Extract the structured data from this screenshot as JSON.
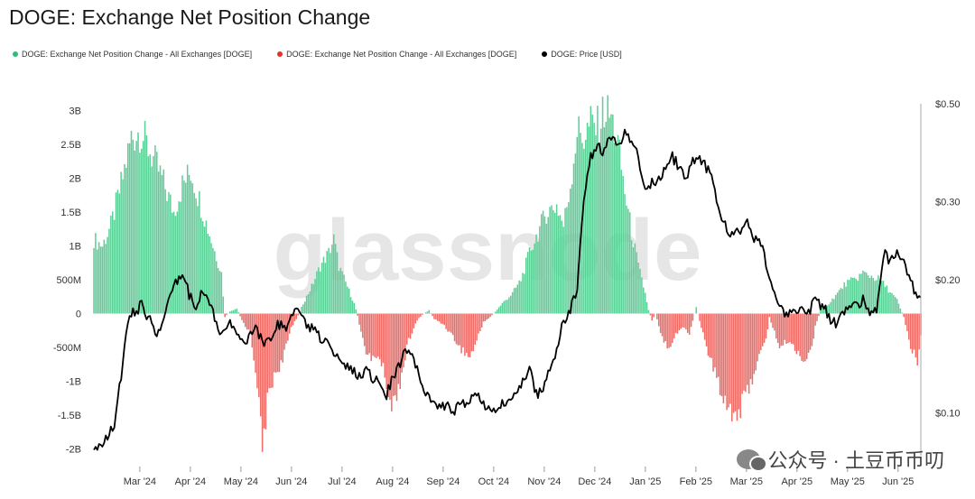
{
  "chart_data": {
    "type": "bar",
    "title": "DOGE: Exchange Net Position Change",
    "legend": [
      {
        "label": "DOGE: Exchange Net Position Change - All Exchanges [DOGE]",
        "color": "#2dbd7a"
      },
      {
        "label": "DOGE: Exchange Net Position Change - All Exchanges [DOGE]",
        "color": "#e8302a"
      },
      {
        "label": "DOGE: Price [USD]",
        "color": "#000000"
      }
    ],
    "x_ticks": [
      "Mar '24",
      "Apr '24",
      "May '24",
      "Jun '24",
      "Jul '24",
      "Aug '24",
      "Sep '24",
      "Oct '24",
      "Nov '24",
      "Dec '24",
      "Jan '25",
      "Feb '25",
      "Mar '25",
      "Apr '25",
      "May '25",
      "Jun '25"
    ],
    "y_left_ticks": [
      "3B",
      "2.5B",
      "2B",
      "1.5B",
      "1B",
      "500M",
      "0",
      "-500M",
      "-1B",
      "-1.5B",
      "-2B"
    ],
    "y_left_values": [
      3000,
      2500,
      2000,
      1500,
      1000,
      500,
      0,
      -500,
      -1000,
      -1500,
      -2000
    ],
    "ylim_left_millions": [
      -2100,
      3100
    ],
    "y_right_ticks": [
      "$0.50",
      "$0.30",
      "$0.20",
      "$0.10"
    ],
    "y_right_values": [
      0.5,
      0.3,
      0.2,
      0.1
    ],
    "ylim_right_usd_log": [
      0.08,
      0.5
    ],
    "x_range_days": [
      0,
      486
    ],
    "net_position_keypoints_millions": [
      [
        0,
        1100
      ],
      [
        5,
        1000
      ],
      [
        10,
        1300
      ],
      [
        16,
        1900
      ],
      [
        22,
        2600
      ],
      [
        27,
        2700
      ],
      [
        33,
        2400
      ],
      [
        40,
        2000
      ],
      [
        47,
        1500
      ],
      [
        52,
        1900
      ],
      [
        57,
        2100
      ],
      [
        63,
        1600
      ],
      [
        70,
        1000
      ],
      [
        75,
        600
      ],
      [
        77,
        -50
      ],
      [
        80,
        30
      ],
      [
        84,
        80
      ],
      [
        87,
        -100
      ],
      [
        92,
        -300
      ],
      [
        96,
        -1000
      ],
      [
        99,
        -2050
      ],
      [
        102,
        -1300
      ],
      [
        106,
        -900
      ],
      [
        111,
        -700
      ],
      [
        116,
        -200
      ],
      [
        120,
        -30
      ],
      [
        123,
        150
      ],
      [
        128,
        400
      ],
      [
        133,
        700
      ],
      [
        138,
        900
      ],
      [
        141,
        1100
      ],
      [
        144,
        700
      ],
      [
        149,
        400
      ],
      [
        153,
        150
      ],
      [
        155,
        -30
      ],
      [
        159,
        -500
      ],
      [
        163,
        -700
      ],
      [
        167,
        -600
      ],
      [
        171,
        -900
      ],
      [
        175,
        -1400
      ],
      [
        180,
        -1000
      ],
      [
        185,
        -400
      ],
      [
        190,
        -100
      ],
      [
        193,
        -20
      ],
      [
        197,
        50
      ],
      [
        200,
        -80
      ],
      [
        205,
        -150
      ],
      [
        210,
        -300
      ],
      [
        215,
        -500
      ],
      [
        221,
        -650
      ],
      [
        225,
        -400
      ],
      [
        229,
        -120
      ],
      [
        233,
        -50
      ],
      [
        236,
        30
      ],
      [
        240,
        150
      ],
      [
        246,
        300
      ],
      [
        251,
        500
      ],
      [
        256,
        900
      ],
      [
        261,
        1200
      ],
      [
        266,
        1500
      ],
      [
        272,
        1600
      ],
      [
        276,
        1300
      ],
      [
        280,
        1900
      ],
      [
        284,
        2700
      ],
      [
        288,
        2600
      ],
      [
        292,
        2800
      ],
      [
        296,
        2750
      ],
      [
        300,
        3000
      ],
      [
        304,
        2900
      ],
      [
        308,
        2500
      ],
      [
        312,
        1800
      ],
      [
        316,
        1200
      ],
      [
        320,
        700
      ],
      [
        324,
        300
      ],
      [
        326,
        50
      ],
      [
        328,
        -100
      ],
      [
        330,
        0
      ],
      [
        334,
        -350
      ],
      [
        338,
        -500
      ],
      [
        342,
        -300
      ],
      [
        346,
        -200
      ],
      [
        350,
        -300
      ],
      [
        354,
        100
      ],
      [
        356,
        -100
      ],
      [
        360,
        -500
      ],
      [
        364,
        -800
      ],
      [
        368,
        -1100
      ],
      [
        372,
        -1300
      ],
      [
        376,
        -1500
      ],
      [
        380,
        -1400
      ],
      [
        385,
        -1100
      ],
      [
        390,
        -700
      ],
      [
        395,
        -400
      ],
      [
        397,
        -50
      ],
      [
        399,
        -200
      ],
      [
        403,
        -500
      ],
      [
        408,
        -400
      ],
      [
        413,
        -550
      ],
      [
        418,
        -700
      ],
      [
        422,
        -500
      ],
      [
        424,
        -200
      ],
      [
        427,
        50
      ],
      [
        432,
        150
      ],
      [
        437,
        300
      ],
      [
        442,
        450
      ],
      [
        447,
        500
      ],
      [
        452,
        600
      ],
      [
        457,
        550
      ],
      [
        462,
        500
      ],
      [
        467,
        350
      ],
      [
        472,
        200
      ],
      [
        476,
        -50
      ],
      [
        480,
        -500
      ],
      [
        484,
        -700
      ],
      [
        486,
        -300
      ]
    ],
    "price_keypoints_usd": [
      [
        0,
        0.085
      ],
      [
        5,
        0.083
      ],
      [
        8,
        0.088
      ],
      [
        12,
        0.095
      ],
      [
        16,
        0.12
      ],
      [
        20,
        0.16
      ],
      [
        24,
        0.17
      ],
      [
        28,
        0.175
      ],
      [
        32,
        0.165
      ],
      [
        36,
        0.15
      ],
      [
        40,
        0.16
      ],
      [
        44,
        0.18
      ],
      [
        48,
        0.2
      ],
      [
        52,
        0.205
      ],
      [
        56,
        0.185
      ],
      [
        60,
        0.175
      ],
      [
        64,
        0.19
      ],
      [
        68,
        0.175
      ],
      [
        72,
        0.16
      ],
      [
        76,
        0.15
      ],
      [
        80,
        0.16
      ],
      [
        84,
        0.155
      ],
      [
        88,
        0.145
      ],
      [
        92,
        0.15
      ],
      [
        96,
        0.155
      ],
      [
        100,
        0.14
      ],
      [
        104,
        0.15
      ],
      [
        108,
        0.16
      ],
      [
        112,
        0.155
      ],
      [
        116,
        0.165
      ],
      [
        120,
        0.17
      ],
      [
        124,
        0.16
      ],
      [
        128,
        0.155
      ],
      [
        132,
        0.15
      ],
      [
        136,
        0.145
      ],
      [
        140,
        0.14
      ],
      [
        144,
        0.135
      ],
      [
        148,
        0.128
      ],
      [
        152,
        0.125
      ],
      [
        156,
        0.122
      ],
      [
        160,
        0.125
      ],
      [
        164,
        0.12
      ],
      [
        168,
        0.115
      ],
      [
        172,
        0.11
      ],
      [
        176,
        0.12
      ],
      [
        180,
        0.13
      ],
      [
        184,
        0.14
      ],
      [
        188,
        0.13
      ],
      [
        192,
        0.12
      ],
      [
        196,
        0.11
      ],
      [
        200,
        0.105
      ],
      [
        204,
        0.102
      ],
      [
        208,
        0.105
      ],
      [
        212,
        0.1
      ],
      [
        216,
        0.106
      ],
      [
        220,
        0.104
      ],
      [
        224,
        0.11
      ],
      [
        228,
        0.105
      ],
      [
        232,
        0.102
      ],
      [
        236,
        0.1
      ],
      [
        240,
        0.105
      ],
      [
        244,
        0.108
      ],
      [
        248,
        0.112
      ],
      [
        252,
        0.118
      ],
      [
        256,
        0.125
      ],
      [
        260,
        0.11
      ],
      [
        264,
        0.112
      ],
      [
        268,
        0.125
      ],
      [
        272,
        0.14
      ],
      [
        276,
        0.16
      ],
      [
        280,
        0.17
      ],
      [
        284,
        0.19
      ],
      [
        288,
        0.3
      ],
      [
        292,
        0.38
      ],
      [
        296,
        0.4
      ],
      [
        300,
        0.39
      ],
      [
        304,
        0.42
      ],
      [
        308,
        0.4
      ],
      [
        312,
        0.43
      ],
      [
        316,
        0.41
      ],
      [
        320,
        0.38
      ],
      [
        324,
        0.32
      ],
      [
        328,
        0.33
      ],
      [
        332,
        0.34
      ],
      [
        336,
        0.36
      ],
      [
        340,
        0.38
      ],
      [
        344,
        0.36
      ],
      [
        348,
        0.34
      ],
      [
        352,
        0.37
      ],
      [
        356,
        0.38
      ],
      [
        360,
        0.36
      ],
      [
        364,
        0.33
      ],
      [
        368,
        0.28
      ],
      [
        372,
        0.26
      ],
      [
        376,
        0.25
      ],
      [
        380,
        0.26
      ],
      [
        384,
        0.27
      ],
      [
        388,
        0.25
      ],
      [
        392,
        0.24
      ],
      [
        396,
        0.21
      ],
      [
        400,
        0.19
      ],
      [
        404,
        0.17
      ],
      [
        408,
        0.165
      ],
      [
        412,
        0.17
      ],
      [
        416,
        0.175
      ],
      [
        420,
        0.17
      ],
      [
        424,
        0.18
      ],
      [
        428,
        0.175
      ],
      [
        432,
        0.165
      ],
      [
        436,
        0.16
      ],
      [
        440,
        0.17
      ],
      [
        444,
        0.175
      ],
      [
        448,
        0.175
      ],
      [
        452,
        0.18
      ],
      [
        456,
        0.17
      ],
      [
        460,
        0.17
      ],
      [
        464,
        0.23
      ],
      [
        468,
        0.22
      ],
      [
        472,
        0.23
      ],
      [
        476,
        0.22
      ],
      [
        480,
        0.2
      ],
      [
        484,
        0.18
      ],
      [
        486,
        0.185
      ]
    ]
  },
  "watermark": {
    "text": "公众号 · 土豆币币叨"
  }
}
